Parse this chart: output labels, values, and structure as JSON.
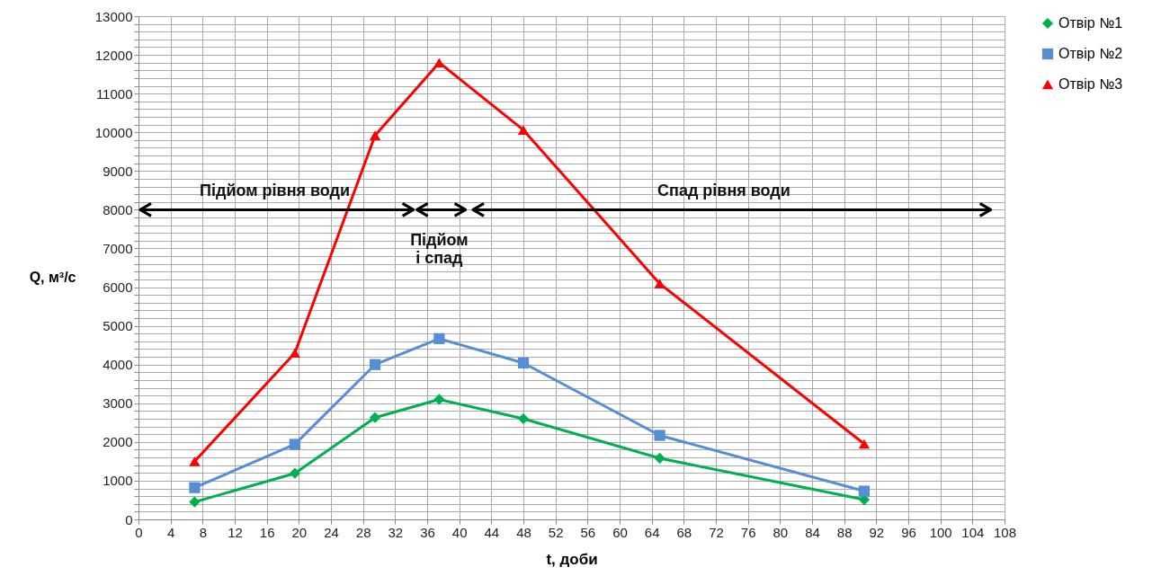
{
  "chart_data": {
    "type": "line",
    "xlabel": "t, доби",
    "ylabel": "Q, м³/с",
    "xlim": [
      0,
      108
    ],
    "xticks": [
      0,
      4,
      8,
      12,
      16,
      20,
      24,
      28,
      32,
      36,
      40,
      44,
      48,
      52,
      56,
      60,
      64,
      68,
      72,
      76,
      80,
      84,
      88,
      92,
      96,
      100,
      104,
      108
    ],
    "ylim": [
      0,
      13000
    ],
    "yticks": [
      0,
      {
        "value": 200,
        "label": null
      },
      {
        "value": 400,
        "label": null
      },
      {
        "value": 600,
        "label": null
      },
      {
        "value": 800,
        "label": null
      },
      1000,
      {
        "value": 1200,
        "label": null
      },
      {
        "value": 1400,
        "label": null
      },
      {
        "value": 1600,
        "label": null
      },
      {
        "value": 1800,
        "label": null
      },
      2000,
      {
        "value": 2200,
        "label": null
      },
      {
        "value": 2400,
        "label": null
      },
      {
        "value": 2600,
        "label": null
      },
      {
        "value": 2800,
        "label": null
      },
      3000,
      {
        "value": 3200,
        "label": null
      },
      {
        "value": 3400,
        "label": null
      },
      {
        "value": 3600,
        "label": null
      },
      {
        "value": 3800,
        "label": null
      },
      4000,
      {
        "value": 4200,
        "label": null
      },
      {
        "value": 4400,
        "label": null
      },
      {
        "value": 4600,
        "label": null
      },
      {
        "value": 4800,
        "label": null
      },
      5000,
      {
        "value": 5200,
        "label": null
      },
      {
        "value": 5400,
        "label": null
      },
      {
        "value": 5600,
        "label": null
      },
      {
        "value": 5800,
        "label": null
      },
      6000,
      {
        "value": 6200,
        "label": null
      },
      {
        "value": 6400,
        "label": null
      },
      {
        "value": 6600,
        "label": null
      },
      {
        "value": 6800,
        "label": null
      },
      7000,
      {
        "value": 7200,
        "label": null
      },
      {
        "value": 7400,
        "label": null
      },
      {
        "value": 7600,
        "label": null
      },
      {
        "value": 7800,
        "label": null
      },
      8000,
      {
        "value": 8200,
        "label": null
      },
      {
        "value": 8400,
        "label": null
      },
      {
        "value": 8600,
        "label": null
      },
      {
        "value": 8800,
        "label": null
      },
      9000,
      {
        "value": 9200,
        "label": null
      },
      {
        "value": 9400,
        "label": null
      },
      {
        "value": 9600,
        "label": null
      },
      {
        "value": 9800,
        "label": null
      },
      10000,
      {
        "value": 10200,
        "label": null
      },
      {
        "value": 10400,
        "label": null
      },
      {
        "value": 10600,
        "label": null
      },
      {
        "value": 10800,
        "label": null
      },
      11000,
      {
        "value": 11200,
        "label": null
      },
      {
        "value": 11400,
        "label": null
      },
      {
        "value": 11600,
        "label": null
      },
      {
        "value": 11800,
        "label": null
      },
      12000,
      {
        "value": 12200,
        "label": null
      },
      {
        "value": 12400,
        "label": null
      },
      {
        "value": 12600,
        "label": null
      },
      {
        "value": 12800,
        "label": null
      },
      13000
    ],
    "grid": true,
    "legend": "right",
    "x": [
      7,
      19.5,
      29.5,
      37.5,
      48,
      65,
      90.5
    ],
    "series": [
      {
        "name": "Отвір №1",
        "color": "#00b050",
        "marker": "diamond",
        "values": [
          450,
          1190,
          2630,
          3100,
          2600,
          1580,
          510
        ]
      },
      {
        "name": "Отвір №2",
        "color": "#558ed5",
        "marker": "square",
        "values": [
          820,
          1940,
          4000,
          4670,
          4040,
          2170,
          730
        ]
      },
      {
        "name": "Отвір №3",
        "color": "#ff0000",
        "marker": "triangle",
        "values": [
          1500,
          4300,
          9920,
          11800,
          10060,
          6090,
          1950
        ]
      }
    ],
    "annotations": [
      "Підйом рівня води",
      "Підйом\nі спад",
      "Спад рівня води"
    ]
  }
}
